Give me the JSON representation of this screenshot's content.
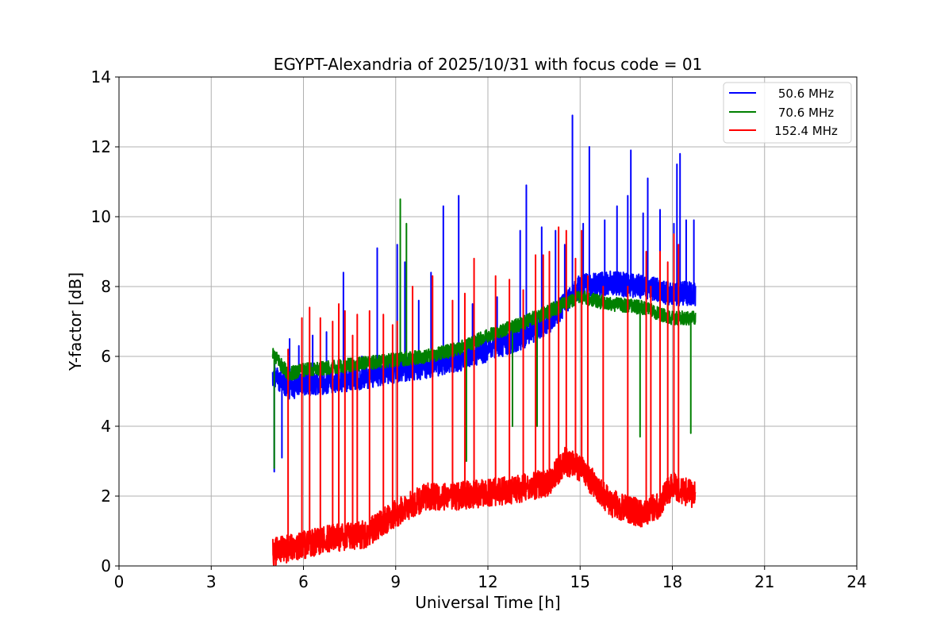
{
  "chart_data": {
    "type": "line",
    "title": "EGYPT-Alexandria of 2025/10/31 with focus code = 01",
    "xlabel": "Universal Time [h]",
    "ylabel": "Y-factor [dB]",
    "xlim": [
      0,
      24
    ],
    "ylim": [
      0,
      14
    ],
    "xticks": [
      0,
      3,
      6,
      9,
      12,
      15,
      18,
      21,
      24
    ],
    "yticks": [
      0,
      2,
      4,
      6,
      8,
      10,
      12,
      14
    ],
    "grid": true,
    "legend_position": "top-right",
    "data_range_hours": [
      5.0,
      18.75
    ],
    "series": [
      {
        "name": "50.6 MHz",
        "color": "#0000ff",
        "trend": [
          [
            5.0,
            5.5
          ],
          [
            5.5,
            5.1
          ],
          [
            6.0,
            5.2
          ],
          [
            7.0,
            5.3
          ],
          [
            8.0,
            5.4
          ],
          [
            9.0,
            5.6
          ],
          [
            10.0,
            5.7
          ],
          [
            11.0,
            5.9
          ],
          [
            12.0,
            6.2
          ],
          [
            13.0,
            6.5
          ],
          [
            14.0,
            7.0
          ],
          [
            15.0,
            8.0
          ],
          [
            16.0,
            8.1
          ],
          [
            17.0,
            8.0
          ],
          [
            18.0,
            7.8
          ],
          [
            18.75,
            7.8
          ]
        ],
        "noise_dB": 0.35,
        "spikes": [
          [
            5.05,
            2.7
          ],
          [
            5.3,
            3.1
          ],
          [
            5.55,
            6.5
          ],
          [
            5.85,
            6.3
          ],
          [
            6.3,
            6.6
          ],
          [
            6.75,
            6.7
          ],
          [
            7.3,
            8.4
          ],
          [
            7.9,
            6.0
          ],
          [
            8.4,
            9.1
          ],
          [
            9.05,
            9.2
          ],
          [
            9.3,
            8.7
          ],
          [
            9.75,
            7.6
          ],
          [
            10.15,
            8.4
          ],
          [
            10.55,
            10.3
          ],
          [
            11.05,
            10.6
          ],
          [
            11.5,
            7.5
          ],
          [
            12.3,
            7.7
          ],
          [
            13.05,
            9.6
          ],
          [
            13.25,
            10.9
          ],
          [
            13.75,
            9.7
          ],
          [
            14.2,
            9.6
          ],
          [
            14.5,
            9.2
          ],
          [
            14.75,
            12.9
          ],
          [
            15.1,
            9.8
          ],
          [
            15.3,
            12.0
          ],
          [
            15.8,
            9.9
          ],
          [
            16.2,
            10.3
          ],
          [
            16.55,
            10.6
          ],
          [
            16.65,
            11.9
          ],
          [
            17.05,
            10.1
          ],
          [
            17.2,
            11.1
          ],
          [
            17.6,
            10.2
          ],
          [
            18.05,
            9.8
          ],
          [
            18.15,
            11.5
          ],
          [
            18.25,
            11.8
          ],
          [
            18.45,
            9.9
          ],
          [
            18.7,
            9.9
          ]
        ]
      },
      {
        "name": "70.6 MHz",
        "color": "#008000",
        "trend": [
          [
            5.0,
            6.1
          ],
          [
            5.5,
            5.5
          ],
          [
            6.0,
            5.6
          ],
          [
            7.0,
            5.7
          ],
          [
            8.0,
            5.8
          ],
          [
            9.0,
            5.9
          ],
          [
            10.0,
            6.0
          ],
          [
            11.0,
            6.2
          ],
          [
            12.0,
            6.6
          ],
          [
            13.0,
            6.9
          ],
          [
            14.0,
            7.3
          ],
          [
            15.0,
            7.7
          ],
          [
            16.0,
            7.5
          ],
          [
            17.0,
            7.4
          ],
          [
            18.0,
            7.1
          ],
          [
            18.75,
            7.1
          ]
        ],
        "noise_dB": 0.2,
        "spikes": [
          [
            5.05,
            2.8
          ],
          [
            9.15,
            10.5
          ],
          [
            9.35,
            9.8
          ],
          [
            11.3,
            3.0
          ],
          [
            12.8,
            4.0
          ],
          [
            13.6,
            4.0
          ],
          [
            16.95,
            3.7
          ],
          [
            17.85,
            7.6
          ],
          [
            18.6,
            3.8
          ]
        ]
      },
      {
        "name": "152.4 MHz",
        "color": "#ff0000",
        "trend": [
          [
            5.0,
            0.4
          ],
          [
            5.5,
            0.5
          ],
          [
            6.0,
            0.6
          ],
          [
            7.0,
            0.8
          ],
          [
            8.0,
            0.9
          ],
          [
            9.0,
            1.5
          ],
          [
            10.0,
            2.0
          ],
          [
            11.0,
            2.0
          ],
          [
            12.0,
            2.1
          ],
          [
            13.0,
            2.2
          ],
          [
            14.0,
            2.4
          ],
          [
            14.5,
            3.0
          ],
          [
            15.0,
            2.8
          ],
          [
            16.0,
            1.8
          ],
          [
            17.0,
            1.5
          ],
          [
            17.5,
            1.7
          ],
          [
            18.0,
            2.3
          ],
          [
            18.75,
            2.0
          ]
        ],
        "noise_dB": 0.4,
        "spikes": [
          [
            5.5,
            6.2
          ],
          [
            5.95,
            7.1
          ],
          [
            6.2,
            7.4
          ],
          [
            6.55,
            7.1
          ],
          [
            6.95,
            7.0
          ],
          [
            7.15,
            7.5
          ],
          [
            7.35,
            7.3
          ],
          [
            7.6,
            6.6
          ],
          [
            7.75,
            7.2
          ],
          [
            8.15,
            7.3
          ],
          [
            8.6,
            7.2
          ],
          [
            8.9,
            6.9
          ],
          [
            9.05,
            7.0
          ],
          [
            9.55,
            8.0
          ],
          [
            10.2,
            8.3
          ],
          [
            10.85,
            7.6
          ],
          [
            11.25,
            7.8
          ],
          [
            11.55,
            8.8
          ],
          [
            12.25,
            8.3
          ],
          [
            12.7,
            8.2
          ],
          [
            13.15,
            7.9
          ],
          [
            13.55,
            8.9
          ],
          [
            13.8,
            8.9
          ],
          [
            14.0,
            9.0
          ],
          [
            14.3,
            9.7
          ],
          [
            14.55,
            9.6
          ],
          [
            14.85,
            8.8
          ],
          [
            15.05,
            9.6
          ],
          [
            15.25,
            8.3
          ],
          [
            15.75,
            8.0
          ],
          [
            16.55,
            8.0
          ],
          [
            17.15,
            9.0
          ],
          [
            17.3,
            8.0
          ],
          [
            17.6,
            9.0
          ],
          [
            17.85,
            8.7
          ],
          [
            18.05,
            9.5
          ],
          [
            18.2,
            9.2
          ]
        ]
      }
    ]
  }
}
